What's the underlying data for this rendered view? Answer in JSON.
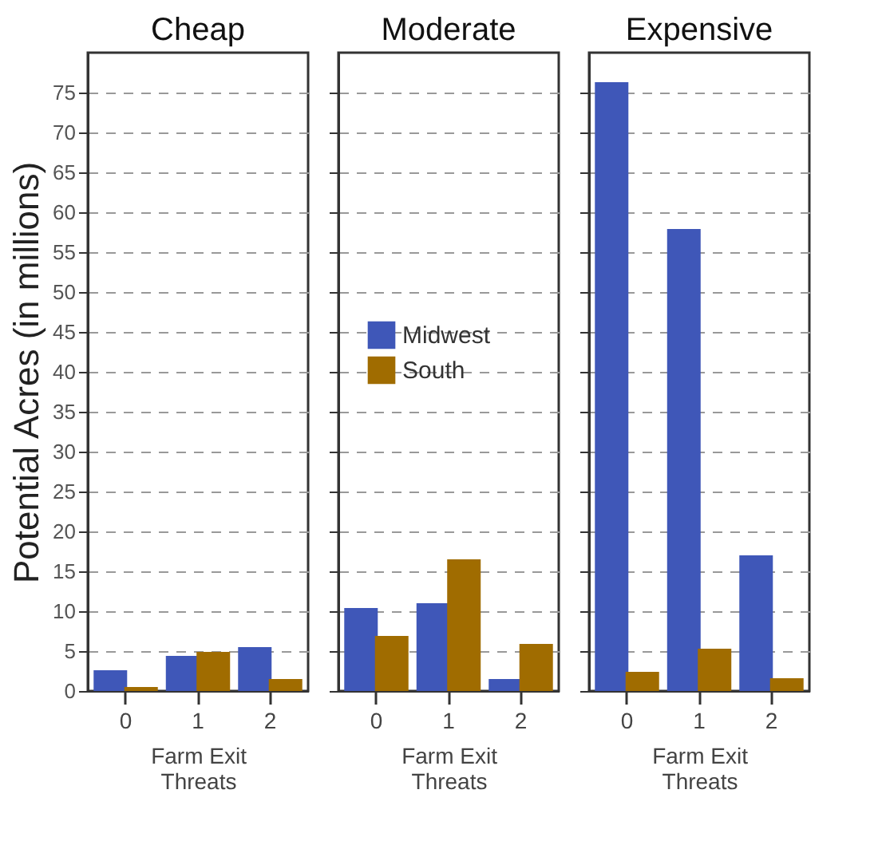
{
  "chart_data": [
    {
      "type": "bar",
      "title": "Cheap",
      "xlabel": "Farm Exit\nThreats",
      "ylabel": "Potential Acres (in millions)",
      "categories": [
        "0",
        "1",
        "2"
      ],
      "series": [
        {
          "color": "#3f57b8",
          "values": [
            2.6,
            4.4,
            5.5
          ]
        },
        {
          "color": "#a06c00",
          "values": [
            0.5,
            4.9,
            1.5
          ]
        }
      ],
      "ylim": [
        0,
        80
      ],
      "yticks": [
        0,
        5,
        10,
        15,
        20,
        25,
        30,
        35,
        40,
        45,
        50,
        55,
        60,
        65,
        70,
        75
      ],
      "grid": "y"
    },
    {
      "type": "bar",
      "title": "Moderate",
      "xlabel": "Farm Exit\nThreats",
      "categories": [
        "0",
        "1",
        "2"
      ],
      "series": [
        {
          "name": "Midwest",
          "color": "#3f57b8",
          "values": [
            10.4,
            11.0,
            1.5
          ]
        },
        {
          "name": "South",
          "color": "#a06c00",
          "values": [
            6.9,
            16.5,
            5.9
          ]
        }
      ],
      "ylim": [
        0,
        80
      ],
      "yticks": [
        0,
        5,
        10,
        15,
        20,
        25,
        30,
        35,
        40,
        45,
        50,
        55,
        60,
        65,
        70,
        75
      ],
      "grid": "y",
      "tick_labels": "x",
      "legend": "left"
    },
    {
      "type": "bar",
      "title": "Expensive",
      "xlabel": "Farm Exit\nThreats",
      "categories": [
        "0",
        "1",
        "2"
      ],
      "series": [
        {
          "color": "#3f57b8",
          "values": [
            76.3,
            57.9,
            17.0
          ]
        },
        {
          "color": "#a06c00",
          "values": [
            2.4,
            5.3,
            1.6
          ]
        }
      ],
      "ylim": [
        0,
        80
      ],
      "yticks": [
        0,
        5,
        10,
        15,
        20,
        25,
        30,
        35,
        40,
        45,
        50,
        55,
        60,
        65,
        70,
        75
      ],
      "grid": "y",
      "tick_labels": "x"
    }
  ]
}
